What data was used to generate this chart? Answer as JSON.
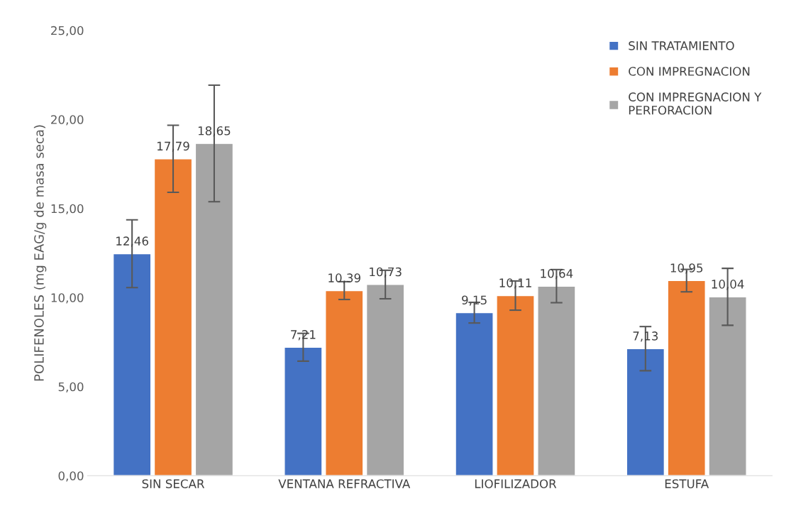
{
  "chart_data": {
    "type": "bar",
    "ylabel": "POLIFENOLES (mg EAG/g de masa seca)",
    "categories": [
      "SIN SECAR",
      "VENTANA REFRACTIVA",
      "LIOFILIZADOR",
      "ESTUFA"
    ],
    "series": [
      {
        "name": "SIN TRATAMIENTO",
        "color": "#4472c4",
        "values": [
          12.46,
          7.21,
          9.15,
          7.13
        ],
        "errors": [
          1.9,
          0.78,
          0.58,
          1.24
        ],
        "value_labels": [
          "12,46",
          "7,21",
          "9,15",
          "7,13"
        ]
      },
      {
        "name": "CON IMPREGNACION",
        "color": "#ed7d31",
        "values": [
          17.79,
          10.39,
          10.11,
          10.95
        ],
        "errors": [
          1.88,
          0.5,
          0.82,
          0.63
        ],
        "value_labels": [
          "17,79",
          "10,39",
          "10,11",
          "10,95"
        ]
      },
      {
        "name": "CON IMPREGNACION Y\nPERFORACION",
        "color": "#a5a5a5",
        "values": [
          18.65,
          10.73,
          10.64,
          10.04
        ],
        "errors": [
          3.27,
          0.8,
          0.93,
          1.6
        ],
        "value_labels": [
          "18,65",
          "10,73",
          "10,64",
          "10,04"
        ]
      }
    ],
    "ylim": [
      0,
      25
    ],
    "yticks": [
      {
        "value": 0,
        "label": "0,00"
      },
      {
        "value": 5,
        "label": "5,00"
      },
      {
        "value": 10,
        "label": "10,00"
      },
      {
        "value": 15,
        "label": "15,00"
      },
      {
        "value": 20,
        "label": "20,00"
      },
      {
        "value": 25,
        "label": "25,00"
      }
    ],
    "grid": false,
    "legend": "top right"
  }
}
